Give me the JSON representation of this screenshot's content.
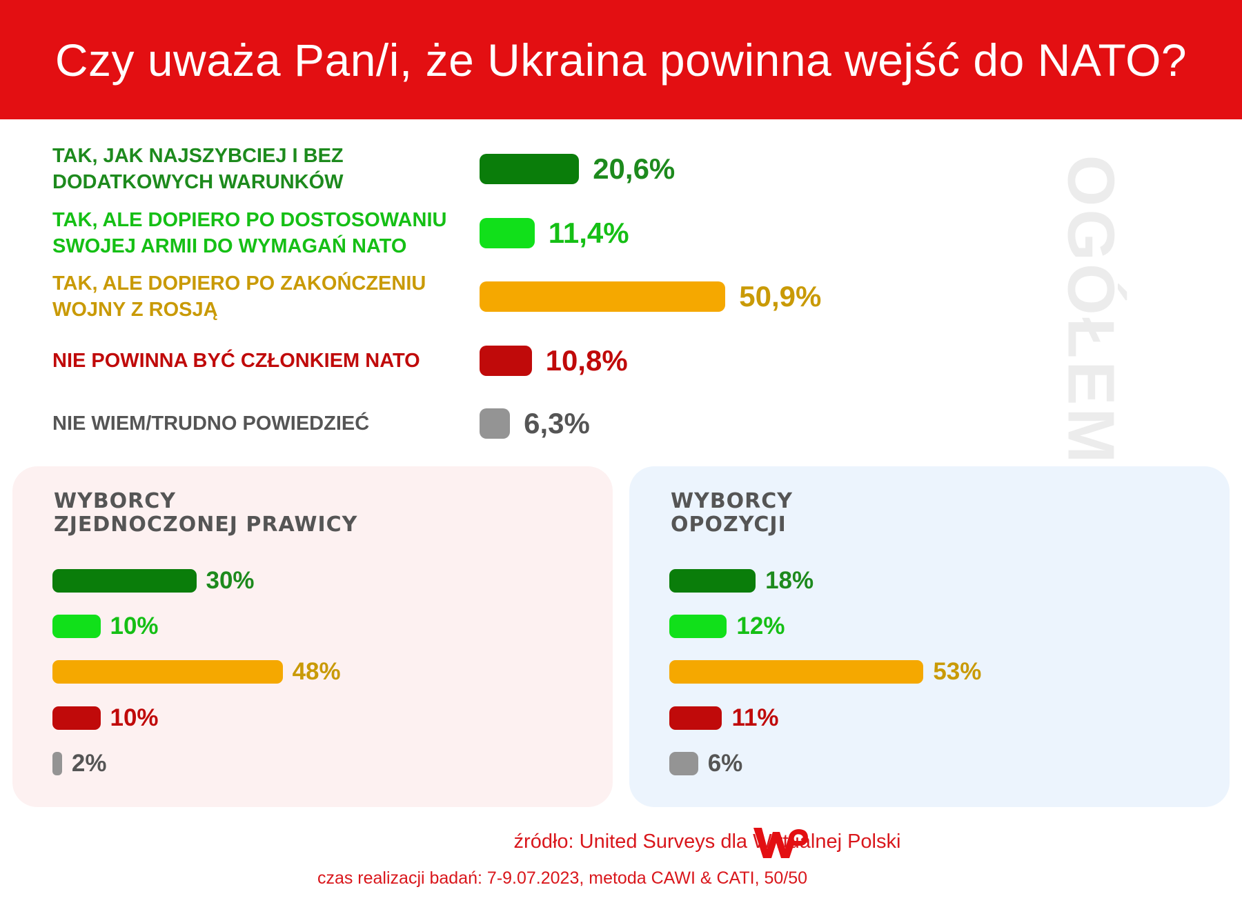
{
  "header": {
    "title": "Czy uważa Pan/i, że Ukraina powinna wejść do NATO?"
  },
  "colors": {
    "header_bg": "#e30f12",
    "dark_green": "#0a7d0a",
    "light_green": "#11e01a",
    "orange": "#f5a800",
    "red": "#c00a0a",
    "gray": "#949494",
    "label_orange": "#c99a06",
    "label_dark_green": "#1d8a1d",
    "label_light_green": "#15bf15",
    "label_gray": "#555555"
  },
  "side_label": "OGÓŁEM",
  "chart_data": [
    {
      "type": "bar",
      "title": "",
      "categories": [
        "TAK, JAK NAJSZYBCIEJ I BEZ DODATKOWYCH WARUNKÓW",
        "TAK, ALE DOPIERO PO DOSTOSOWANIU SWOJEJ ARMII DO WYMAGAŃ NATO",
        "TAK, ALE DOPIERO PO ZAKOŃCZENIU WOJNY Z ROSJĄ",
        "NIE POWINNA BYĆ CZŁONKIEM NATO",
        "NIE WIEM/TRUDNO POWIEDZIEĆ"
      ],
      "category_lines": [
        [
          "TAK, JAK NAJSZYBCIEJ I BEZ",
          "DODATKOWYCH WARUNKÓW"
        ],
        [
          "TAK, ALE DOPIERO PO DOSTOSOWANIU",
          "SWOJEJ ARMII DO WYMAGAŃ NATO"
        ],
        [
          "TAK, ALE DOPIERO PO ZAKOŃCZENIU",
          "WOJNY Z ROSJĄ"
        ],
        [
          "NIE POWINNA BYĆ CZŁONKIEM NATO"
        ],
        [
          "NIE WIEM/TRUDNO POWIEDZIEĆ"
        ]
      ],
      "values": [
        20.6,
        11.4,
        50.9,
        10.8,
        6.3
      ],
      "value_labels": [
        "20,6%",
        "11,4%",
        "50,9%",
        "10,8%",
        "6,3%"
      ],
      "bar_colors": [
        "#0a7d0a",
        "#11e01a",
        "#f5a800",
        "#c00a0a",
        "#949494"
      ],
      "text_colors": [
        "#1d8a1d",
        "#15bf15",
        "#c99a06",
        "#c00a0a",
        "#555555"
      ],
      "orientation": "horizontal",
      "grid": false
    },
    {
      "type": "bar",
      "title": "WYBORCY ZJEDNOCZONEJ PRAWICY",
      "title_lines": [
        "WYBORCY",
        "ZJEDNOCZONEJ PRAWICY"
      ],
      "values": [
        30,
        10,
        48,
        10,
        2
      ],
      "value_labels": [
        "30%",
        "10%",
        "48%",
        "10%",
        "2%"
      ],
      "bar_colors": [
        "#0a7d0a",
        "#11e01a",
        "#f5a800",
        "#c00a0a",
        "#949494"
      ],
      "text_colors": [
        "#1d8a1d",
        "#15bf15",
        "#c99a06",
        "#c00a0a",
        "#555555"
      ],
      "orientation": "horizontal",
      "grid": false
    },
    {
      "type": "bar",
      "title": "WYBORCY OPOZYCJI",
      "title_lines": [
        "WYBORCY",
        "OPOZYCJI"
      ],
      "values": [
        18,
        12,
        53,
        11,
        6
      ],
      "value_labels": [
        "18%",
        "12%",
        "53%",
        "11%",
        "6%"
      ],
      "bar_colors": [
        "#0a7d0a",
        "#11e01a",
        "#f5a800",
        "#c00a0a",
        "#949494"
      ],
      "text_colors": [
        "#1d8a1d",
        "#15bf15",
        "#c99a06",
        "#c00a0a",
        "#555555"
      ],
      "orientation": "horizontal",
      "grid": false
    }
  ],
  "footer": {
    "source": "źródło: United Surveys dla Wirtualnej Polski",
    "method": "czas realizacji badań: 7-9.07.2023, metoda CAWI & CATI, 50/50",
    "logo": "wp-logo"
  }
}
